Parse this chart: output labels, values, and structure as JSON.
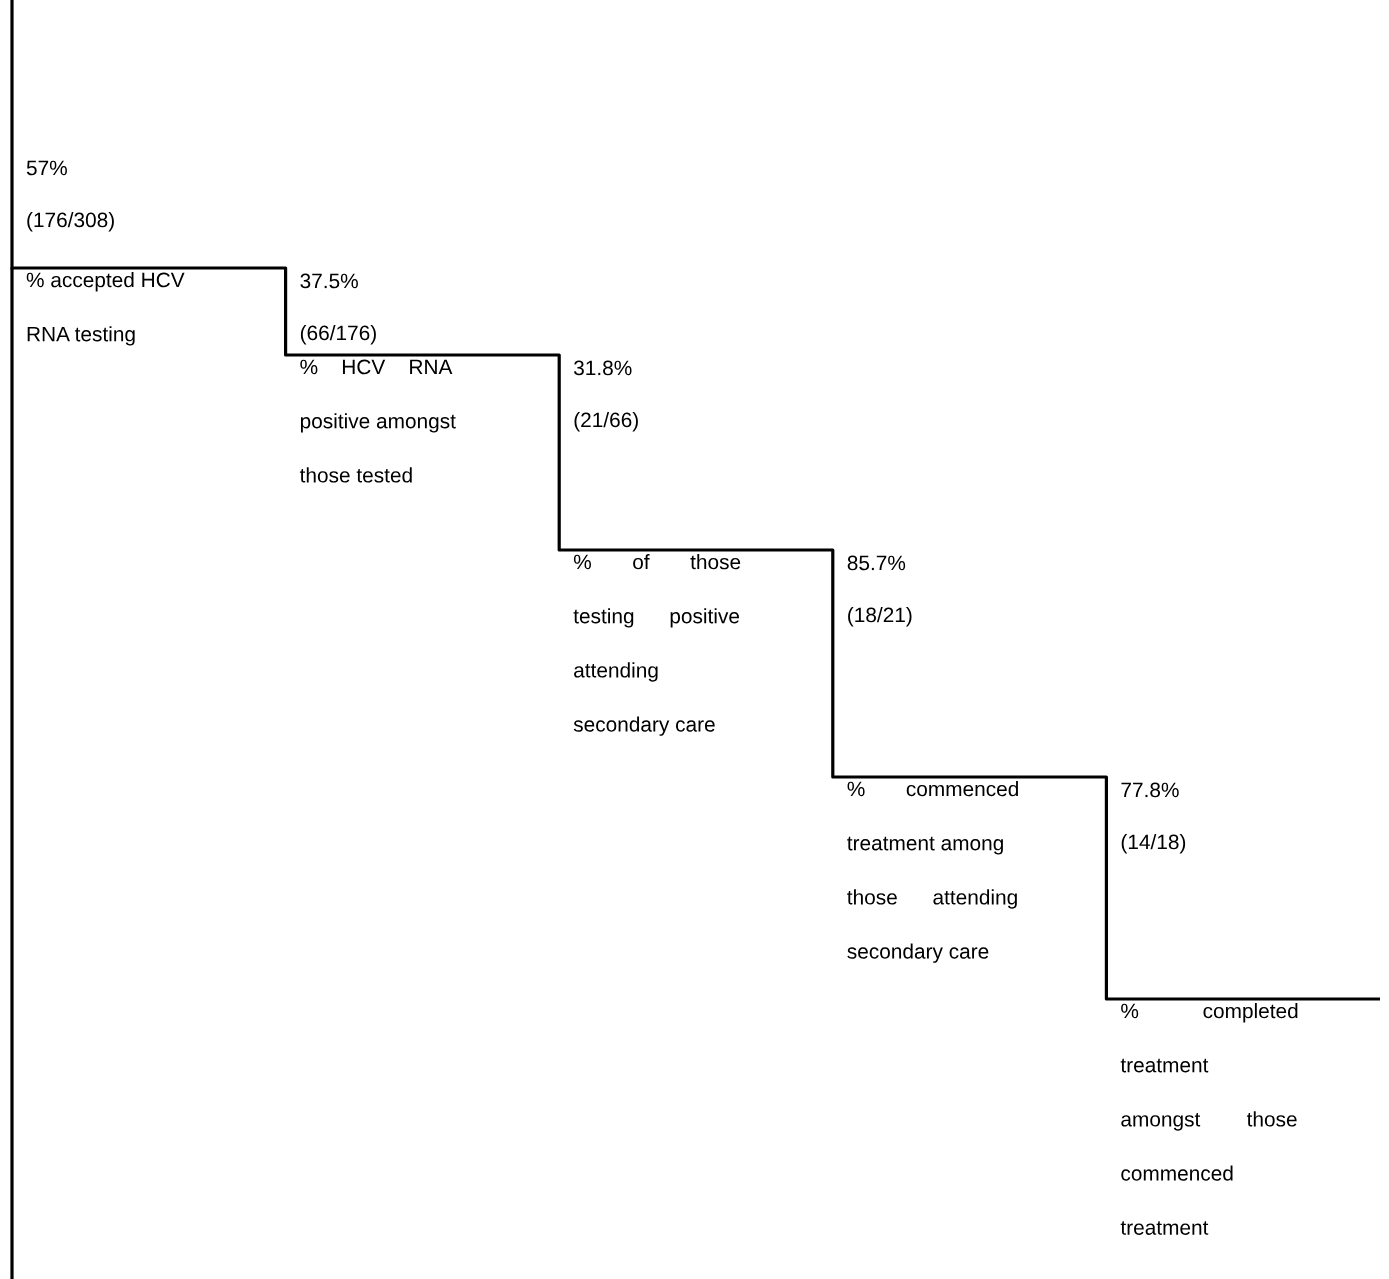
{
  "chart_data": {
    "type": "other",
    "categories": [
      "% accepted HCV\nRNA testing",
      "%    HCV    RNA\npositive amongst\nthose tested",
      "%       of       those\ntesting      positive\nattending\nsecondary care",
      "%       commenced\ntreatment among\nthose      attending\nsecondary care",
      "%           completed\ntreatment\namongst        those\ncommenced\ntreatment"
    ],
    "values": [
      57,
      37.5,
      31.8,
      85.7,
      77.8
    ],
    "value_labels": [
      "57%",
      "37.5%",
      "31.8%",
      "85.7%",
      "77.8%"
    ],
    "annotations": [
      "(176/308)",
      "(66/176)",
      "(21/66)",
      "(18/21)",
      "(14/18)"
    ],
    "color": "#000000"
  }
}
